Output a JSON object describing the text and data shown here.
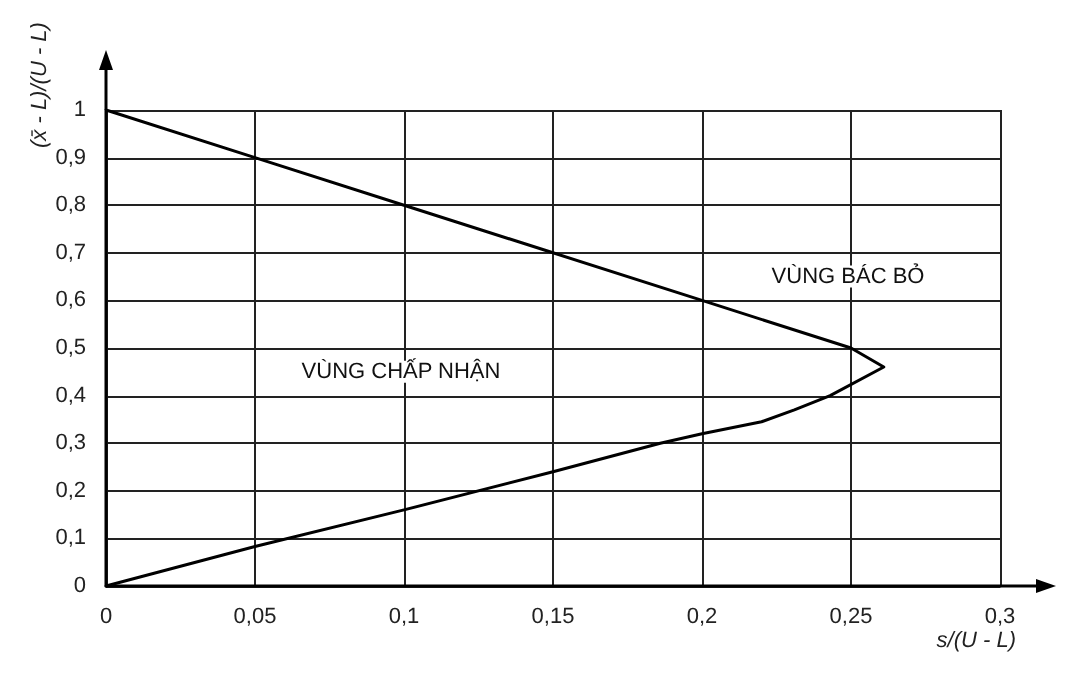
{
  "chart_data": {
    "type": "line",
    "xlabel": "s/(U - L)",
    "ylabel": "(x̄ - L)/(U - L)",
    "x": [
      0,
      0.05,
      0.1,
      0.15,
      0.2,
      0.25,
      0.261,
      0.243,
      0.231,
      0.22,
      0.2,
      0.186,
      0.15,
      0.1,
      0.05,
      0
    ],
    "series": [
      {
        "color": "#000000",
        "values": [
          1,
          0.9,
          0.8,
          0.7,
          0.6,
          0.5,
          0.46,
          0.4,
          0.37,
          0.345,
          0.32,
          0.3,
          0.24,
          0.16,
          0.083,
          0
        ]
      }
    ],
    "xlim": [
      0,
      0.3
    ],
    "ylim": [
      0,
      1
    ],
    "xticks": [
      0,
      {
        "value": 0.05,
        "label": "0,05"
      },
      {
        "value": 0.1,
        "label": "0,1"
      },
      {
        "value": 0.15,
        "label": "0,15"
      },
      {
        "value": 0.2,
        "label": "0,2"
      },
      {
        "value": 0.25,
        "label": "0,25"
      },
      {
        "value": 0.3,
        "label": "0,3"
      }
    ],
    "yticks": [
      0,
      {
        "value": 0.1,
        "label": "0,1"
      },
      {
        "value": 0.2,
        "label": "0,2"
      },
      {
        "value": 0.3,
        "label": "0,3"
      },
      {
        "value": 0.4,
        "label": "0,4"
      },
      {
        "value": 0.5,
        "label": "0,5"
      },
      {
        "value": 0.6,
        "label": "0,6"
      },
      {
        "value": 0.7,
        "label": "0,7"
      },
      {
        "value": 0.8,
        "label": "0,8"
      },
      {
        "value": 0.9,
        "label": "0,9"
      },
      1
    ],
    "annotations": [
      "VÙNG CHẤP NHẬN",
      "VÙNG BÁC BỎ"
    ],
    "grid": true,
    "marker": "none",
    "line_style": "solid"
  }
}
